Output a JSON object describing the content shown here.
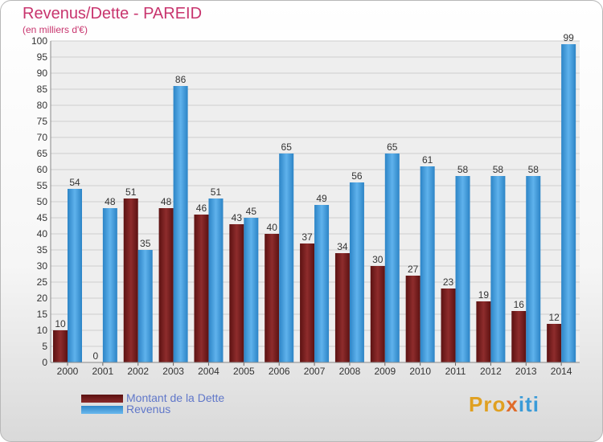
{
  "title": "Revenus/Dette - PAREID",
  "subtitle": "(en milliers d'€)",
  "legend": {
    "debt_label": "Montant de la Dette",
    "revenue_label": "Revenus"
  },
  "logo": {
    "part1": "Pro",
    "part2": "x",
    "part3": "iti"
  },
  "colors": {
    "debt": "#7a1c1c",
    "revenue": "#3f9ee0",
    "title": "#c8356e",
    "legend_text": "#6077c9"
  },
  "chart_data": {
    "type": "bar",
    "title": "Revenus/Dette - PAREID",
    "subtitle": "(en milliers d'€)",
    "categories": [
      "2000",
      "2001",
      "2002",
      "2003",
      "2004",
      "2005",
      "2006",
      "2007",
      "2008",
      "2009",
      "2010",
      "2011",
      "2012",
      "2013",
      "2014"
    ],
    "series": [
      {
        "name": "Montant de la Dette",
        "values": [
          10,
          0,
          51,
          48,
          46,
          43,
          40,
          37,
          34,
          30,
          27,
          23,
          19,
          16,
          12
        ]
      },
      {
        "name": "Revenus",
        "values": [
          54,
          48,
          35,
          86,
          51,
          45,
          65,
          49,
          56,
          65,
          61,
          58,
          58,
          58,
          99
        ]
      }
    ],
    "ylim": [
      0,
      100
    ],
    "yticks": [
      0,
      5,
      10,
      15,
      20,
      25,
      30,
      35,
      40,
      45,
      50,
      55,
      60,
      65,
      70,
      75,
      80,
      85,
      90,
      95,
      100
    ],
    "grid": true,
    "legend_position": "bottom-left"
  }
}
